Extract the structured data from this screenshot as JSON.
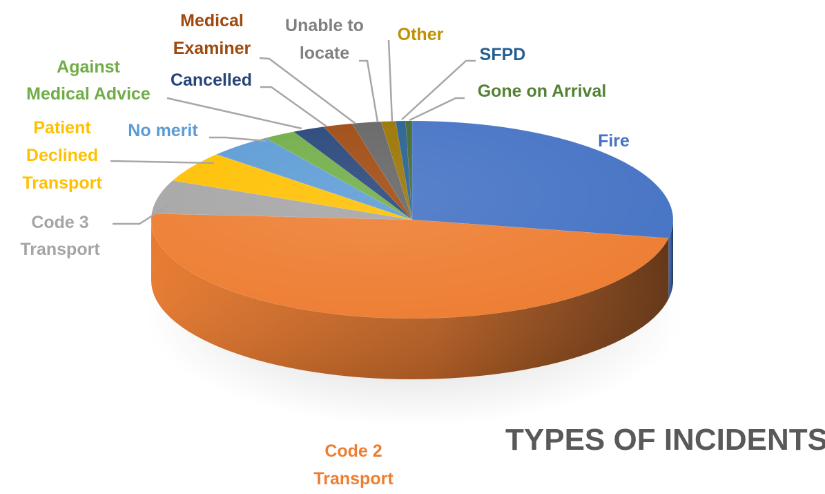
{
  "chart_data": {
    "type": "pie",
    "style": "3d",
    "title": "TYPES OF INCIDENTS",
    "legend": "none",
    "slices": [
      {
        "label": "Fire",
        "value": 28.0,
        "color": "#4472C4"
      },
      {
        "label": "Code 2 Transport",
        "value": 48.0,
        "color": "#ED7D31"
      },
      {
        "label": "Code 3 Transport",
        "value": 5.5,
        "color": "#A5A5A5"
      },
      {
        "label": "Patient Declined Transport",
        "value": 5.0,
        "color": "#FFC000"
      },
      {
        "label": "No merit",
        "value": 4.0,
        "color": "#5B9BD5"
      },
      {
        "label": "Against Medical Advice",
        "value": 2.0,
        "color": "#70AD47"
      },
      {
        "label": "Cancelled",
        "value": 2.0,
        "color": "#264478"
      },
      {
        "label": "Medical Examiner",
        "value": 1.8,
        "color": "#9E480E"
      },
      {
        "label": "Unable to locate",
        "value": 1.8,
        "color": "#636363"
      },
      {
        "label": "Other",
        "value": 0.9,
        "color": "#997300"
      },
      {
        "label": "SFPD",
        "value": 0.6,
        "color": "#255E91"
      },
      {
        "label": "Gone on Arrival",
        "value": 0.4,
        "color": "#43682B"
      }
    ]
  }
}
